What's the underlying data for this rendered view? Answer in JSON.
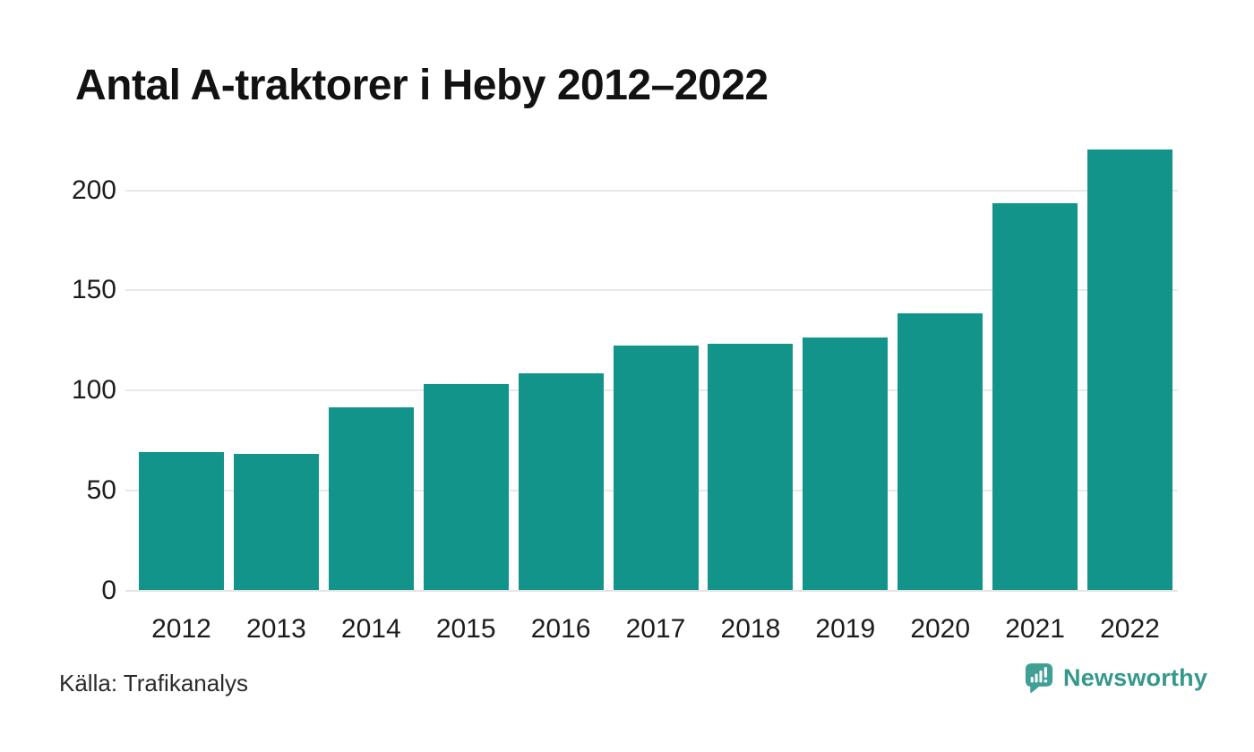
{
  "title": "Antal A-traktorer i Heby 2012–2022",
  "source": "Källa: Trafikanalys",
  "branding": {
    "name": "Newsworthy",
    "icon": "speech-bubble-bar-chart-icon"
  },
  "colors": {
    "bar": "#13948b",
    "gridline": "#e9e9e9",
    "baseline": "#e4e4e4",
    "title_text": "#121212",
    "axis_text": "#1c1c1c",
    "source_text": "#2b2b2b",
    "logo_icon": "#41a095",
    "logo_text": "#35988c"
  },
  "chart_data": {
    "type": "bar",
    "title": "Antal A-traktorer i Heby 2012–2022",
    "categories": [
      "2012",
      "2013",
      "2014",
      "2015",
      "2016",
      "2017",
      "2018",
      "2019",
      "2020",
      "2021",
      "2022"
    ],
    "values": [
      69,
      68,
      91,
      103,
      108,
      122,
      123,
      126,
      138,
      193,
      220
    ],
    "yticks": [
      0,
      50,
      100,
      150,
      200
    ],
    "ylim": [
      0,
      228
    ],
    "xlabel": "",
    "ylabel": "",
    "grid": true,
    "legend": false,
    "source": "Källa: Trafikanalys"
  }
}
